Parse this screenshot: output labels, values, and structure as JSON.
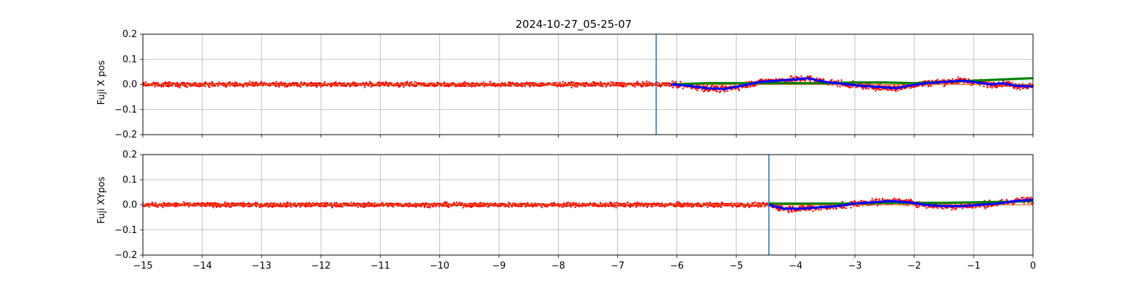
{
  "chart_data": {
    "type": "scatter",
    "title": "2024-10-27_05-25-07",
    "x_ticks": [
      "−15",
      "−14",
      "−13",
      "−12",
      "−11",
      "−10",
      "−9",
      "−8",
      "−7",
      "−6",
      "−5",
      "−4",
      "−3",
      "−2",
      "−1",
      "0"
    ],
    "colors": {
      "raw": "#ff0000",
      "smooth": "#0000ff",
      "green": "#008000",
      "baseline": "#d2691e",
      "marker": "#1f77b4",
      "grid": "#b0b0b0"
    },
    "panels": [
      {
        "ylabel": "Fuji X pos",
        "xlim": [
          -15,
          0
        ],
        "ylim": [
          -0.2,
          0.2
        ],
        "y_ticks": [
          "0.2",
          "0.1",
          "0.0",
          "−0.1",
          "−0.2"
        ],
        "vline_x": -6.35,
        "event_start": -6.1,
        "smooth_curve": [
          [
            -6.1,
            0.0
          ],
          [
            -5.8,
            -0.005
          ],
          [
            -5.5,
            -0.015
          ],
          [
            -5.2,
            -0.018
          ],
          [
            -4.9,
            -0.005
          ],
          [
            -4.6,
            0.01
          ],
          [
            -4.3,
            0.015
          ],
          [
            -4.0,
            0.02
          ],
          [
            -3.8,
            0.025
          ],
          [
            -3.5,
            0.01
          ],
          [
            -3.1,
            0.0
          ],
          [
            -2.9,
            -0.005
          ],
          [
            -2.6,
            -0.01
          ],
          [
            -2.3,
            -0.015
          ],
          [
            -2.1,
            -0.005
          ],
          [
            -1.8,
            0.005
          ],
          [
            -1.5,
            0.01
          ],
          [
            -1.2,
            0.015
          ],
          [
            -1.0,
            0.01
          ],
          [
            -0.7,
            0.0
          ],
          [
            -0.5,
            0.005
          ],
          [
            -0.3,
            -0.005
          ],
          [
            0.0,
            -0.008
          ]
        ],
        "green_curve": [
          [
            -6.1,
            0.0
          ],
          [
            -5.5,
            0.005
          ],
          [
            -5.0,
            0.005
          ],
          [
            -4.5,
            0.005
          ],
          [
            -4.0,
            0.005
          ],
          [
            -3.5,
            0.005
          ],
          [
            -3.0,
            0.008
          ],
          [
            -2.5,
            0.008
          ],
          [
            -2.0,
            0.005
          ],
          [
            -1.5,
            0.01
          ],
          [
            -1.0,
            0.015
          ],
          [
            -0.5,
            0.02
          ],
          [
            0.0,
            0.025
          ]
        ]
      },
      {
        "ylabel": "Fuji XYpos",
        "xlim": [
          -15,
          0
        ],
        "ylim": [
          -0.2,
          0.2
        ],
        "y_ticks": [
          "0.2",
          "0.1",
          "0.0",
          "−0.1",
          "−0.2"
        ],
        "vline_x": -4.45,
        "event_start": -4.45,
        "smooth_curve": [
          [
            -4.45,
            0.0
          ],
          [
            -4.2,
            -0.015
          ],
          [
            -3.9,
            -0.015
          ],
          [
            -3.6,
            -0.01
          ],
          [
            -3.3,
            -0.005
          ],
          [
            -3.0,
            0.005
          ],
          [
            -2.7,
            0.01
          ],
          [
            -2.4,
            0.015
          ],
          [
            -2.1,
            0.01
          ],
          [
            -1.8,
            0.0
          ],
          [
            -1.5,
            -0.005
          ],
          [
            -1.2,
            -0.005
          ],
          [
            -0.9,
            0.0
          ],
          [
            -0.6,
            0.005
          ],
          [
            -0.3,
            0.015
          ],
          [
            0.0,
            0.02
          ]
        ],
        "green_curve": [
          [
            -4.45,
            0.005
          ],
          [
            -4.0,
            0.005
          ],
          [
            -3.5,
            0.005
          ],
          [
            -3.0,
            0.005
          ],
          [
            -2.5,
            0.008
          ],
          [
            -2.0,
            0.008
          ],
          [
            -1.5,
            0.008
          ],
          [
            -1.0,
            0.01
          ],
          [
            -0.5,
            0.012
          ],
          [
            0.0,
            0.015
          ]
        ]
      }
    ]
  }
}
